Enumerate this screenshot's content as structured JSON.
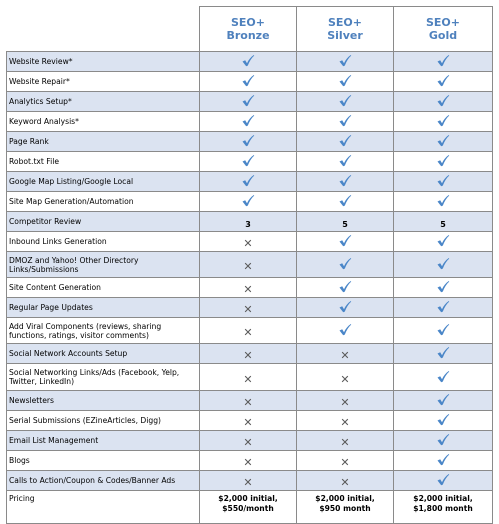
{
  "plans": [
    {
      "line1": "SEO+",
      "line2": "Bronze"
    },
    {
      "line1": "SEO+",
      "line2": "Silver"
    },
    {
      "line1": "SEO+",
      "line2": "Gold"
    }
  ],
  "colors": {
    "accent": "#4f81bd",
    "shade": "#dbe3f1",
    "check": "#4a86c8",
    "x": "#5a5a5a"
  },
  "icons": {
    "check": "checkmark-icon",
    "x": "x-mark-icon"
  },
  "rows": [
    {
      "feature": "Website Review*",
      "values": [
        "check",
        "check",
        "check"
      ]
    },
    {
      "feature": "Website Repair*",
      "values": [
        "check",
        "check",
        "check"
      ]
    },
    {
      "feature": "Analytics Setup*",
      "values": [
        "check",
        "check",
        "check"
      ]
    },
    {
      "feature": "Keyword Analysis*",
      "values": [
        "check",
        "check",
        "check"
      ]
    },
    {
      "feature": "Page Rank",
      "values": [
        "check",
        "check",
        "check"
      ]
    },
    {
      "feature": "Robot.txt File",
      "values": [
        "check",
        "check",
        "check"
      ]
    },
    {
      "feature": "Google Map Listing/Google Local",
      "values": [
        "check",
        "check",
        "check"
      ]
    },
    {
      "feature": "Site Map Generation/Automation",
      "values": [
        "check",
        "check",
        "check"
      ]
    },
    {
      "feature": "Competitor Review",
      "values": [
        "3",
        "5",
        "5"
      ]
    },
    {
      "feature": "Inbound Links Generation",
      "values": [
        "x",
        "check",
        "check"
      ]
    },
    {
      "feature": "DMOZ and Yahoo! Other Directory Links/Submissions",
      "values": [
        "x",
        "check",
        "check"
      ]
    },
    {
      "feature": "Site Content Generation",
      "values": [
        "x",
        "check",
        "check"
      ]
    },
    {
      "feature": "Regular Page Updates",
      "values": [
        "x",
        "check",
        "check"
      ]
    },
    {
      "feature": "Add Viral Components (reviews, sharing functions, ratings, visitor comments)",
      "values": [
        "x",
        "check",
        "check"
      ]
    },
    {
      "feature": "Social Network Accounts Setup",
      "values": [
        "x",
        "x",
        "check"
      ]
    },
    {
      "feature": "Social Networking Links/Ads (Facebook, Yelp, Twitter, LinkedIn)",
      "values": [
        "x",
        "x",
        "check"
      ]
    },
    {
      "feature": "Newsletters",
      "values": [
        "x",
        "x",
        "check"
      ]
    },
    {
      "feature": "Serial Submissions (EZineArticles, Digg)",
      "values": [
        "x",
        "x",
        "check"
      ]
    },
    {
      "feature": "Email List Management",
      "values": [
        "x",
        "x",
        "check"
      ]
    },
    {
      "feature": "Blogs",
      "values": [
        "x",
        "x",
        "check"
      ]
    },
    {
      "feature": "Calls to Action/Coupon & Codes/Banner Ads",
      "values": [
        "x",
        "x",
        "check"
      ]
    }
  ],
  "pricing": {
    "label": "Pricing",
    "values": [
      {
        "line1": "$2,000 initial,",
        "line2": "$550/month"
      },
      {
        "line1": "$2,000 initial,",
        "line2": "$950 month"
      },
      {
        "line1": "$2,000 initial,",
        "line2": "$1,800 month"
      }
    ]
  }
}
